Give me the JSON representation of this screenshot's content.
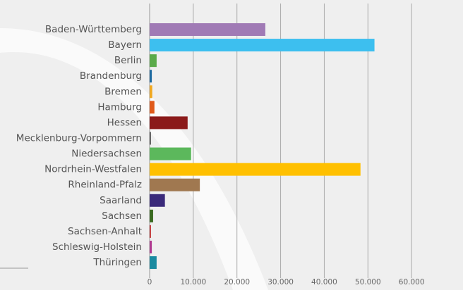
{
  "chart_data": {
    "type": "barh",
    "categories": [
      "Baden-Württemberg",
      "Bayern",
      "Berlin",
      "Brandenburg",
      "Bremen",
      "Hamburg",
      "Hessen",
      "Mecklenburg-Vorpommern",
      "Niedersachsen",
      "Nordrhein-Westfalen",
      "Rheinland-Pfalz",
      "Saarland",
      "Sachsen",
      "Sachsen-Anhalt",
      "Schleswig-Holstein",
      "Thüringen"
    ],
    "values": [
      26500,
      51500,
      1600,
      500,
      600,
      1100,
      8700,
      300,
      9500,
      48300,
      11500,
      3500,
      800,
      300,
      500,
      1600
    ],
    "colors": [
      "#a07ab5",
      "#3dbfef",
      "#5aaa4a",
      "#1e6aa0",
      "#f0a820",
      "#e05a1a",
      "#8b1a1a",
      "#555555",
      "#5cb85c",
      "#ffc000",
      "#a07850",
      "#3a2a7a",
      "#3a6a20",
      "#c03030",
      "#b03a90",
      "#1a8aa0"
    ],
    "xlim": [
      0,
      70000
    ],
    "xticks": [
      0,
      {
        "value": 10000,
        "label": "10.000"
      },
      {
        "value": 20000,
        "label": "20.000"
      },
      {
        "value": 30000,
        "label": "30.000"
      },
      {
        "value": 40000,
        "label": "40.000"
      },
      {
        "value": 50000,
        "label": "50.000"
      },
      {
        "value": 60000,
        "label": "60.000"
      }
    ],
    "grid": true
  }
}
